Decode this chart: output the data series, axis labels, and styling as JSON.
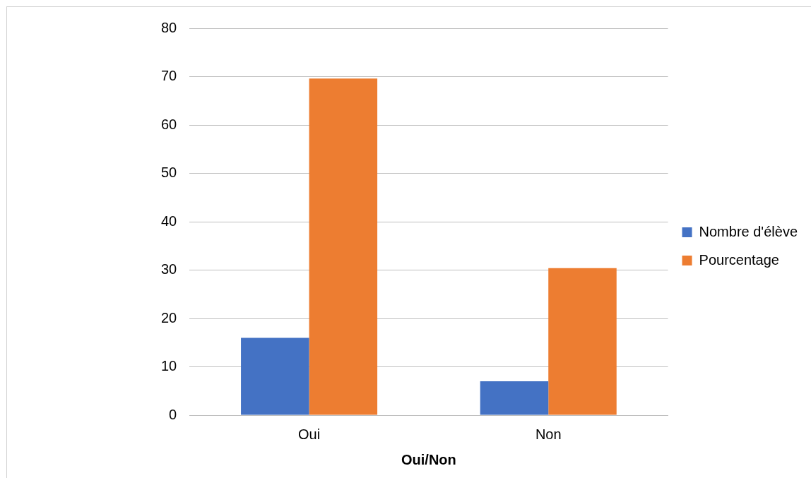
{
  "chart_data": {
    "type": "bar",
    "xlabel": "Oui/Non",
    "categories": [
      "Oui",
      "Non"
    ],
    "series": [
      {
        "name": "Nombre d'élève",
        "color": "#4472c4",
        "values": [
          16,
          7
        ]
      },
      {
        "name": "Pourcentage",
        "color": "#ed7d31",
        "values": [
          69.6,
          30.4
        ]
      }
    ],
    "ylim": [
      0,
      80
    ],
    "yticks": [
      0,
      10,
      20,
      30,
      40,
      50,
      60,
      70,
      80
    ],
    "grid": "y",
    "legend": "right"
  }
}
